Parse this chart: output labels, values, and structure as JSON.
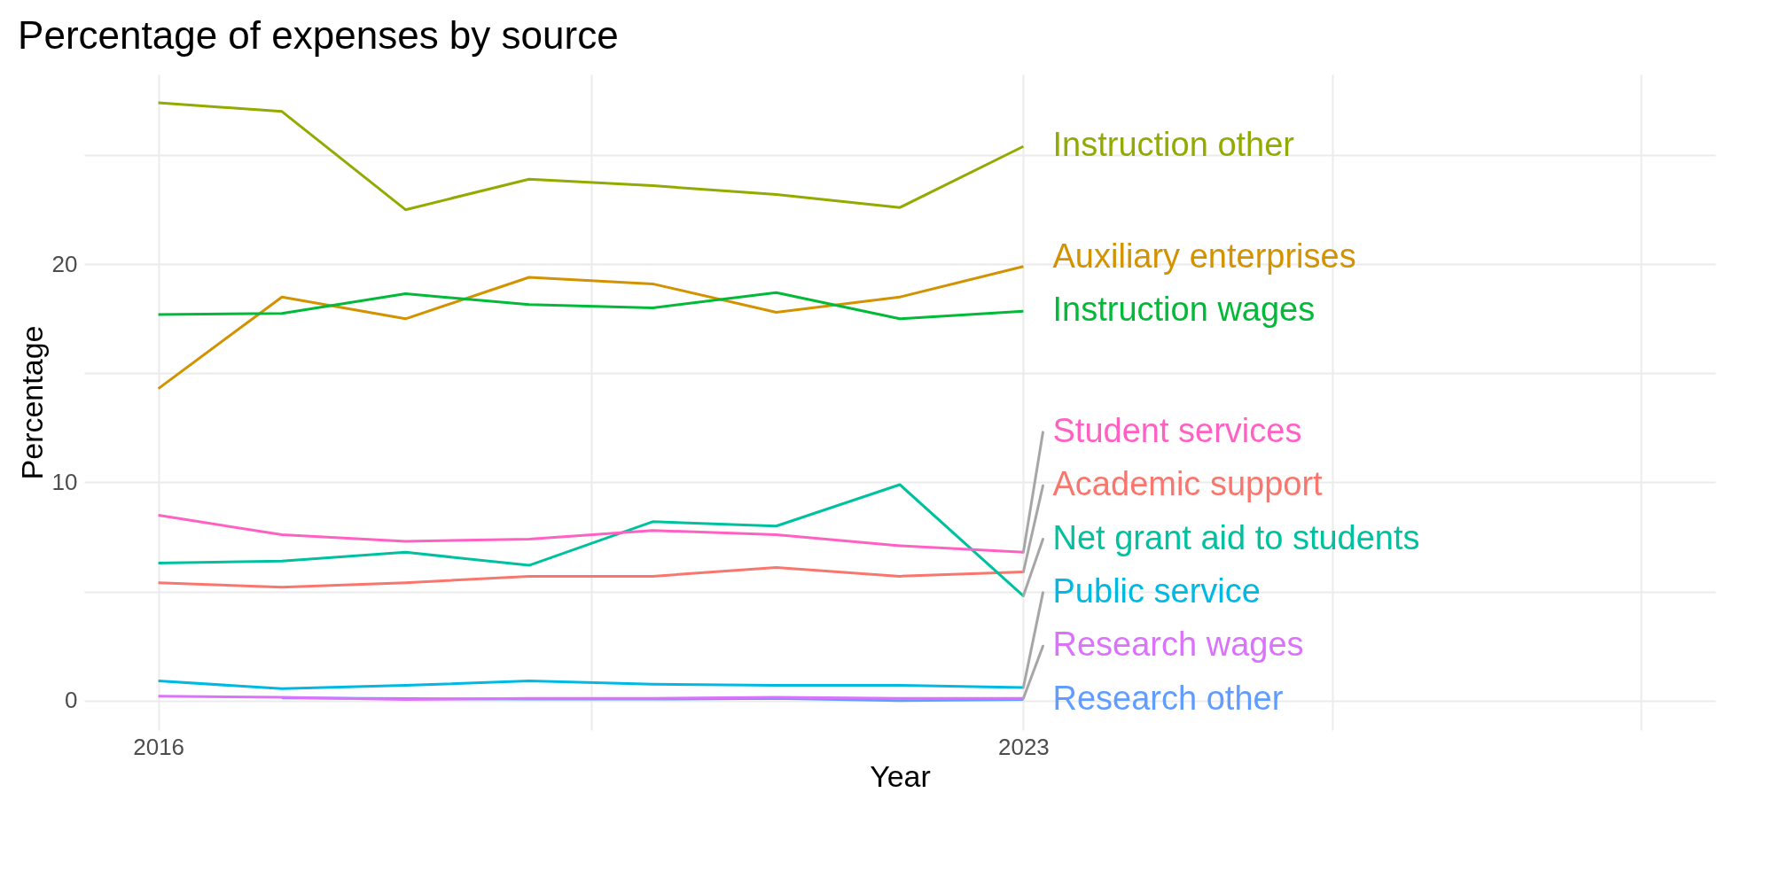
{
  "chart_data": {
    "type": "line",
    "title": "Percentage of expenses by source",
    "xlabel": "Year",
    "ylabel": "Percentage",
    "x": [
      2016,
      2017,
      2018,
      2019,
      2020,
      2021,
      2022,
      2023
    ],
    "xlim": [
      2015.4,
      2028.6
    ],
    "xticks": [
      2016,
      2023,
      {
        "value": 2019.5,
        "label": null
      },
      {
        "value": 2025.5,
        "label": null
      },
      {
        "value": 2028,
        "label": null
      }
    ],
    "ylim": [
      -1.35,
      28.7
    ],
    "yticks": [
      0,
      10,
      20,
      {
        "value": 5,
        "label": null
      },
      {
        "value": 15,
        "label": null
      },
      {
        "value": 25,
        "label": null
      }
    ],
    "grid": true,
    "legend": false,
    "marker": "none",
    "line_style": "solid",
    "series": [
      {
        "name": "Academic support",
        "color": "#f8766d",
        "values": [
          5.4,
          5.2,
          5.4,
          5.7,
          5.7,
          6.1,
          5.7,
          5.9
        ]
      },
      {
        "name": "Auxiliary enterprises",
        "color": "#d39200",
        "values": [
          14.3,
          18.5,
          17.5,
          19.4,
          19.1,
          17.8,
          18.5,
          19.9
        ]
      },
      {
        "name": "Instruction other",
        "color": "#93aa00",
        "values": [
          27.4,
          27.0,
          22.5,
          23.9,
          23.6,
          23.2,
          22.6,
          25.4
        ]
      },
      {
        "name": "Instruction wages",
        "color": "#00ba38",
        "values": [
          17.7,
          17.75,
          18.65,
          18.15,
          18.0,
          18.7,
          17.5,
          17.85
        ]
      },
      {
        "name": "Net grant aid to students",
        "color": "#00c19f",
        "values": [
          6.3,
          6.4,
          6.8,
          6.2,
          8.2,
          8.0,
          9.9,
          4.8
        ]
      },
      {
        "name": "Public service",
        "color": "#00b9e3",
        "values": [
          0.9,
          0.55,
          0.7,
          0.9,
          0.75,
          0.7,
          0.7,
          0.6
        ]
      },
      {
        "name": "Research other",
        "color": "#619cff",
        "values": [
          null,
          0.12,
          null,
          0.07,
          0.07,
          0.1,
          0.0,
          0.05
        ]
      },
      {
        "name": "Research wages",
        "color": "#db72fb",
        "values": [
          0.2,
          0.15,
          0.05,
          0.1,
          0.1,
          0.15,
          0.1,
          0.1
        ]
      },
      {
        "name": "Student services",
        "color": "#ff61c3",
        "values": [
          8.5,
          7.6,
          7.3,
          7.4,
          7.8,
          7.6,
          7.1,
          6.8
        ]
      }
    ]
  }
}
